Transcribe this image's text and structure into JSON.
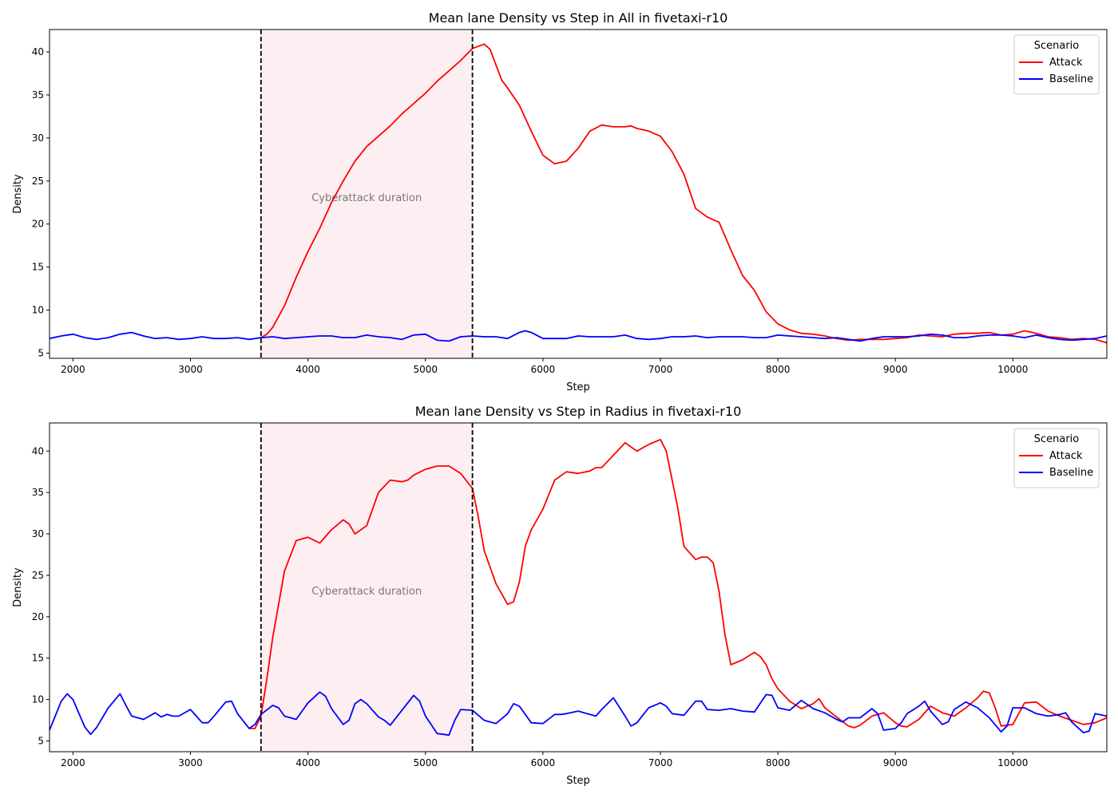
{
  "chart_data": [
    {
      "type": "line",
      "title": "Mean lane Density vs Step in All in fivetaxi-r10",
      "xlabel": "Step",
      "ylabel": "Density",
      "xlim": [
        1800,
        10800
      ],
      "ylim": [
        4.4,
        42.6
      ],
      "xticks": [
        2000,
        3000,
        4000,
        5000,
        6000,
        7000,
        8000,
        9000,
        10000
      ],
      "yticks": [
        5,
        10,
        15,
        20,
        25,
        30,
        35,
        40
      ],
      "grid": false,
      "legend": {
        "title": "Scenario",
        "placement": "top-right"
      },
      "shaded_region": {
        "x0": 3600,
        "x1": 5400,
        "label": "Cyberattack duration",
        "color": "#fdeef2"
      },
      "vlines": [
        3600,
        5400
      ],
      "series": [
        {
          "name": "Attack",
          "color": "#ff0000",
          "x": [
            3600,
            3650,
            3700,
            3800,
            3900,
            4000,
            4100,
            4200,
            4300,
            4400,
            4500,
            4600,
            4700,
            4800,
            4900,
            5000,
            5100,
            5200,
            5300,
            5400,
            5500,
            5550,
            5600,
            5650,
            5700,
            5800,
            5900,
            6000,
            6100,
            6200,
            6300,
            6400,
            6500,
            6600,
            6700,
            6750,
            6800,
            6900,
            7000,
            7100,
            7200,
            7300,
            7400,
            7500,
            7600,
            7700,
            7800,
            7900,
            8000,
            8100,
            8200,
            8300,
            8400,
            8500,
            8600,
            8700,
            8800,
            8900,
            9000,
            9100,
            9200,
            9300,
            9400,
            9500,
            9600,
            9700,
            9800,
            9900,
            10000,
            10100,
            10200,
            10300,
            10400,
            10500,
            10600,
            10700,
            10800
          ],
          "y": [
            6.8,
            7.2,
            8.0,
            10.5,
            13.8,
            16.8,
            19.5,
            22.5,
            25.0,
            27.3,
            29.0,
            30.2,
            31.4,
            32.8,
            34.0,
            35.2,
            36.6,
            37.8,
            39.0,
            40.4,
            40.9,
            40.3,
            38.5,
            36.7,
            35.8,
            33.8,
            30.8,
            28.0,
            27.0,
            27.3,
            28.8,
            30.8,
            31.5,
            31.3,
            31.3,
            31.4,
            31.1,
            30.8,
            30.2,
            28.4,
            25.8,
            21.8,
            20.8,
            20.2,
            17.0,
            14.0,
            12.3,
            9.8,
            8.4,
            7.7,
            7.3,
            7.2,
            7.0,
            6.7,
            6.5,
            6.6,
            6.6,
            6.6,
            6.7,
            6.8,
            7.1,
            7.0,
            6.9,
            7.2,
            7.3,
            7.3,
            7.4,
            7.1,
            7.2,
            7.6,
            7.3,
            6.9,
            6.8,
            6.6,
            6.7,
            6.6,
            6.2
          ]
        },
        {
          "name": "Baseline",
          "color": "#0000ff",
          "x": [
            1800,
            1900,
            2000,
            2100,
            2200,
            2300,
            2400,
            2500,
            2600,
            2700,
            2800,
            2900,
            3000,
            3100,
            3200,
            3300,
            3400,
            3500,
            3600,
            3700,
            3800,
            3900,
            4000,
            4100,
            4200,
            4300,
            4400,
            4500,
            4600,
            4700,
            4800,
            4900,
            5000,
            5100,
            5200,
            5300,
            5400,
            5500,
            5600,
            5700,
            5800,
            5850,
            5900,
            6000,
            6100,
            6200,
            6300,
            6400,
            6500,
            6600,
            6700,
            6800,
            6900,
            7000,
            7100,
            7200,
            7300,
            7400,
            7500,
            7600,
            7700,
            7800,
            7900,
            8000,
            8100,
            8200,
            8300,
            8400,
            8500,
            8600,
            8700,
            8800,
            8900,
            9000,
            9100,
            9200,
            9300,
            9400,
            9500,
            9600,
            9700,
            9800,
            9900,
            10000,
            10100,
            10200,
            10300,
            10400,
            10500,
            10600,
            10700,
            10800
          ],
          "y": [
            6.7,
            7.0,
            7.2,
            6.8,
            6.6,
            6.8,
            7.2,
            7.4,
            7.0,
            6.7,
            6.8,
            6.6,
            6.7,
            6.9,
            6.7,
            6.7,
            6.8,
            6.6,
            6.8,
            6.9,
            6.7,
            6.8,
            6.9,
            7.0,
            7.0,
            6.8,
            6.8,
            7.1,
            6.9,
            6.8,
            6.6,
            7.1,
            7.2,
            6.5,
            6.4,
            6.9,
            7.0,
            6.9,
            6.9,
            6.7,
            7.4,
            7.6,
            7.4,
            6.7,
            6.7,
            6.7,
            7.0,
            6.9,
            6.9,
            6.9,
            7.1,
            6.7,
            6.6,
            6.7,
            6.9,
            6.9,
            7.0,
            6.8,
            6.9,
            6.9,
            6.9,
            6.8,
            6.8,
            7.1,
            7.0,
            6.9,
            6.8,
            6.7,
            6.8,
            6.6,
            6.4,
            6.7,
            6.9,
            6.9,
            6.9,
            7.0,
            7.2,
            7.1,
            6.8,
            6.8,
            7.0,
            7.1,
            7.1,
            7.0,
            6.8,
            7.1,
            6.8,
            6.6,
            6.5,
            6.6,
            6.7,
            7.0
          ]
        }
      ]
    },
    {
      "type": "line",
      "title": "Mean lane Density vs Step in Radius in fivetaxi-r10",
      "xlabel": "Step",
      "ylabel": "Density",
      "xlim": [
        1800,
        10800
      ],
      "ylim": [
        3.7,
        43.4
      ],
      "xticks": [
        2000,
        3000,
        4000,
        5000,
        6000,
        7000,
        8000,
        9000,
        10000
      ],
      "yticks": [
        5,
        10,
        15,
        20,
        25,
        30,
        35,
        40
      ],
      "grid": false,
      "legend": {
        "title": "Scenario",
        "placement": "top-right"
      },
      "shaded_region": {
        "x0": 3600,
        "x1": 5400,
        "label": "Cyberattack duration",
        "color": "#fdeef2"
      },
      "vlines": [
        3600,
        5400
      ],
      "series": [
        {
          "name": "Attack",
          "color": "#ff0000",
          "x": [
            3500,
            3550,
            3600,
            3650,
            3700,
            3750,
            3800,
            3900,
            4000,
            4100,
            4200,
            4300,
            4350,
            4400,
            4500,
            4550,
            4600,
            4700,
            4800,
            4850,
            4900,
            5000,
            5100,
            5200,
            5300,
            5400,
            5450,
            5500,
            5600,
            5700,
            5750,
            5800,
            5850,
            5900,
            6000,
            6100,
            6200,
            6300,
            6400,
            6450,
            6500,
            6600,
            6700,
            6750,
            6800,
            6900,
            7000,
            7050,
            7100,
            7150,
            7200,
            7300,
            7350,
            7400,
            7450,
            7500,
            7550,
            7600,
            7700,
            7800,
            7850,
            7900,
            7950,
            8000,
            8100,
            8200,
            8300,
            8350,
            8400,
            8500,
            8600,
            8650,
            8700,
            8800,
            8900,
            9000,
            9050,
            9100,
            9200,
            9300,
            9400,
            9500,
            9600,
            9700,
            9750,
            9800,
            9850,
            9900,
            10000,
            10100,
            10200,
            10300,
            10400,
            10500,
            10600,
            10700,
            10800
          ],
          "y": [
            6.5,
            6.5,
            8.0,
            12.5,
            17.5,
            21.5,
            25.5,
            29.2,
            29.6,
            28.9,
            30.5,
            31.7,
            31.2,
            30.0,
            31.0,
            33.0,
            35.0,
            36.5,
            36.3,
            36.5,
            37.1,
            37.8,
            38.2,
            38.2,
            37.3,
            35.5,
            32.0,
            28.0,
            24.0,
            21.5,
            21.8,
            24.2,
            28.5,
            30.5,
            33.0,
            36.5,
            37.5,
            37.3,
            37.6,
            38.0,
            38.0,
            39.5,
            41.0,
            40.5,
            40.0,
            40.8,
            41.4,
            40.0,
            36.5,
            33.0,
            28.5,
            26.9,
            27.2,
            27.2,
            26.5,
            23.0,
            17.8,
            14.2,
            14.8,
            15.7,
            15.2,
            14.2,
            12.5,
            11.3,
            9.8,
            8.9,
            9.5,
            10.1,
            9.0,
            7.9,
            6.8,
            6.6,
            6.9,
            8.0,
            8.4,
            7.2,
            6.8,
            6.7,
            7.6,
            9.2,
            8.4,
            8.0,
            9.0,
            10.2,
            11.0,
            10.8,
            9.0,
            6.8,
            7.0,
            9.6,
            9.7,
            8.6,
            8.0,
            7.5,
            7.0,
            7.2,
            7.8
          ]
        },
        {
          "name": "Baseline",
          "color": "#0000ff",
          "x": [
            1800,
            1900,
            1950,
            2000,
            2100,
            2150,
            2200,
            2300,
            2400,
            2450,
            2500,
            2600,
            2700,
            2750,
            2800,
            2850,
            2900,
            3000,
            3050,
            3100,
            3150,
            3200,
            3300,
            3350,
            3400,
            3500,
            3550,
            3600,
            3700,
            3750,
            3800,
            3900,
            4000,
            4100,
            4150,
            4200,
            4300,
            4350,
            4400,
            4450,
            4500,
            4600,
            4650,
            4700,
            4800,
            4900,
            4950,
            5000,
            5100,
            5200,
            5250,
            5300,
            5400,
            5500,
            5600,
            5700,
            5750,
            5800,
            5900,
            6000,
            6100,
            6150,
            6200,
            6300,
            6400,
            6450,
            6500,
            6600,
            6700,
            6750,
            6800,
            6900,
            7000,
            7050,
            7100,
            7200,
            7300,
            7350,
            7400,
            7500,
            7600,
            7700,
            7800,
            7900,
            7950,
            8000,
            8100,
            8200,
            8300,
            8400,
            8500,
            8550,
            8600,
            8700,
            8800,
            8850,
            8900,
            9000,
            9050,
            9100,
            9200,
            9250,
            9300,
            9400,
            9450,
            9500,
            9600,
            9700,
            9800,
            9900,
            9950,
            10000,
            10100,
            10200,
            10300,
            10400,
            10450,
            10500,
            10600,
            10650,
            10700,
            10800
          ],
          "y": [
            6.3,
            9.8,
            10.7,
            10.0,
            6.7,
            5.8,
            6.6,
            9.0,
            10.7,
            9.3,
            8.0,
            7.6,
            8.4,
            7.9,
            8.2,
            8.0,
            8.0,
            8.8,
            8.0,
            7.2,
            7.2,
            8.0,
            9.7,
            9.8,
            8.3,
            6.5,
            7.0,
            8.2,
            9.3,
            9.0,
            8.0,
            7.6,
            9.6,
            10.9,
            10.4,
            8.9,
            7.0,
            7.5,
            9.5,
            10.0,
            9.5,
            7.9,
            7.5,
            6.9,
            8.7,
            10.5,
            9.8,
            8.0,
            5.9,
            5.7,
            7.5,
            8.8,
            8.7,
            7.5,
            7.1,
            8.3,
            9.5,
            9.2,
            7.2,
            7.1,
            8.2,
            8.2,
            8.3,
            8.6,
            8.2,
            8.0,
            8.8,
            10.2,
            8.0,
            6.8,
            7.2,
            9.0,
            9.6,
            9.2,
            8.3,
            8.1,
            9.8,
            9.8,
            8.8,
            8.7,
            8.9,
            8.6,
            8.5,
            10.6,
            10.5,
            9.0,
            8.7,
            9.9,
            8.9,
            8.4,
            7.6,
            7.3,
            7.8,
            7.8,
            8.9,
            8.3,
            6.3,
            6.5,
            7.2,
            8.3,
            9.2,
            9.8,
            8.6,
            7.0,
            7.3,
            8.8,
            9.7,
            9.0,
            7.8,
            6.1,
            6.8,
            9.0,
            9.0,
            8.3,
            8.0,
            8.2,
            8.4,
            7.3,
            6.0,
            6.2,
            8.3,
            8.0
          ]
        }
      ]
    }
  ]
}
